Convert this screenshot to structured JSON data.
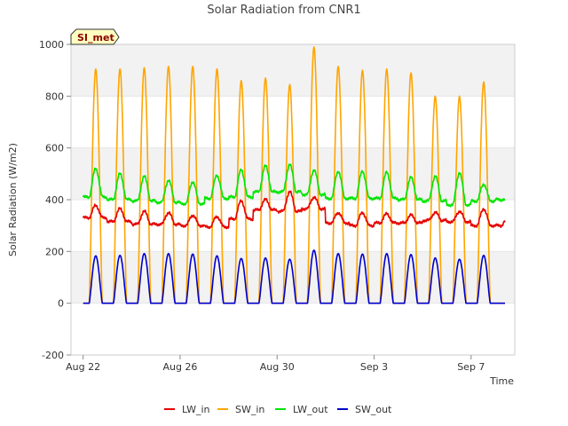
{
  "chart_data": {
    "type": "line",
    "title": "Solar Radiation from CNR1",
    "xlabel": "Time",
    "ylabel": "Solar Radiation (W/m2)",
    "ylim": [
      -200,
      1000
    ],
    "yticks": [
      -200,
      0,
      200,
      400,
      600,
      800,
      1000
    ],
    "x_range_days": [
      -0.5,
      17.8
    ],
    "xticks": [
      {
        "label": "Aug 22",
        "day": 0
      },
      {
        "label": "Aug 26",
        "day": 4
      },
      {
        "label": "Aug 30",
        "day": 8
      },
      {
        "label": "Sep 3",
        "day": 12
      },
      {
        "label": "Sep 7",
        "day": 16
      }
    ],
    "badge": "SI_met",
    "legend_position": "bottom-center",
    "colors": {
      "LW_in": "#e60000",
      "SW_in": "#ffa500",
      "LW_out": "#00e600",
      "SW_out": "#0000cc",
      "band": "#f2f2f2",
      "badge_bg": "#ffffc0"
    },
    "series": [
      {
        "name": "LW_in",
        "color": "#e60000",
        "night": [
          330,
          315,
          305,
          305,
          300,
          295,
          325,
          360,
          355,
          365,
          310,
          300,
          310,
          310,
          320,
          315,
          300,
          300
        ],
        "peak": [
          378,
          365,
          355,
          350,
          340,
          335,
          395,
          400,
          430,
          410,
          350,
          350,
          345,
          340,
          350,
          355,
          365,
          330
        ]
      },
      {
        "name": "SW_in",
        "color": "#ffa500",
        "night": [
          0,
          0,
          0,
          0,
          0,
          0,
          0,
          0,
          0,
          0,
          0,
          0,
          0,
          0,
          0,
          0,
          0,
          0
        ],
        "peak": [
          905,
          905,
          910,
          915,
          915,
          905,
          860,
          870,
          845,
          990,
          915,
          900,
          905,
          890,
          800,
          800,
          855,
          0
        ]
      },
      {
        "name": "LW_out",
        "color": "#00e600",
        "night": [
          410,
          400,
          395,
          390,
          385,
          405,
          410,
          430,
          430,
          420,
          405,
          405,
          405,
          400,
          395,
          380,
          395,
          400
        ],
        "peak": [
          520,
          500,
          490,
          475,
          470,
          495,
          515,
          530,
          535,
          515,
          510,
          510,
          505,
          485,
          490,
          505,
          460,
          400
        ]
      },
      {
        "name": "SW_out",
        "color": "#0000cc",
        "night": [
          0,
          0,
          0,
          0,
          0,
          0,
          0,
          0,
          0,
          0,
          0,
          0,
          0,
          0,
          0,
          0,
          0,
          0
        ],
        "peak": [
          183,
          185,
          192,
          192,
          190,
          183,
          173,
          175,
          170,
          205,
          192,
          190,
          192,
          188,
          175,
          170,
          185,
          0
        ]
      }
    ]
  }
}
